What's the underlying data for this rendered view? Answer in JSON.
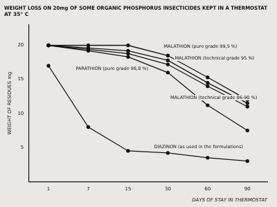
{
  "chart_data": {
    "type": "line",
    "title": "WEIGHT LOSS ON 20mg OF SOME ORGANIC PHOSPHORUS INSECTICIDES KEPT IN A THERMOSTAT\nAT 35° C",
    "x_label": "DAYS OF STAY IN THERMOSTAT",
    "y_label": "WEIGHT OF RESIDUES mg",
    "categories": [
      "1",
      "7",
      "15",
      "30",
      "60",
      "90"
    ],
    "series": [
      {
        "name": "MALATHION (pure grade 99,5 %)",
        "color": "#111111",
        "marker": "circle",
        "values": [
          20,
          20,
          20,
          18.5,
          15.3,
          12
        ]
      },
      {
        "name": "MALATHION (technical grade 95 %)",
        "color": "#111111",
        "marker": "circle",
        "values": [
          20,
          19.6,
          19.2,
          17.8,
          14.5,
          11.5
        ]
      },
      {
        "name": "MALATHION (technical grade 86-90 %)",
        "color": "#111111",
        "marker": "circle",
        "values": [
          20,
          19.4,
          18.8,
          17.2,
          14,
          11
        ]
      },
      {
        "name": "PARATHION (pure grade 98,8 %)",
        "color": "#111111",
        "marker": "circle",
        "values": [
          20,
          19.2,
          18.3,
          16,
          11.2,
          7.5
        ]
      },
      {
        "name": "DIAZINON (as used in the formulations)",
        "color": "#111111",
        "marker": "circle",
        "values": [
          17,
          8,
          4.5,
          4.2,
          3.5,
          3
        ]
      }
    ],
    "ylim": [
      0,
      23
    ],
    "yticks": [
      5,
      10,
      15,
      20
    ],
    "grid": false
  }
}
